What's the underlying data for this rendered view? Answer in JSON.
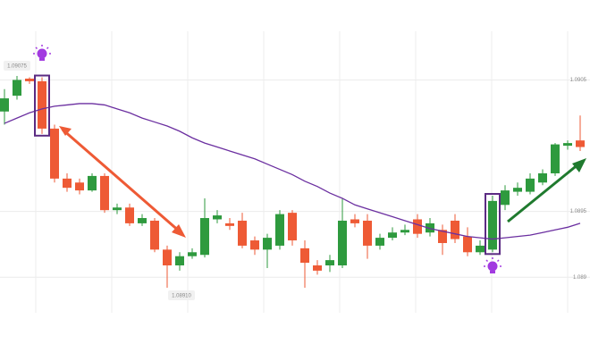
{
  "chart_data": {
    "type": "candlestick",
    "ylim": [
      1.08873,
      1.09087
    ],
    "yticks": [
      1.0905,
      1.0895,
      1.089
    ],
    "grid": true,
    "up_color": "#2e9a3e",
    "down_color": "#ee5a35",
    "highlight_color": "#5b2b83",
    "open": [
      1.09026,
      1.09038,
      1.09051,
      1.09049,
      1.09013,
      1.08975,
      1.08972,
      1.08966,
      1.08977,
      1.08951,
      1.08953,
      1.08941,
      1.08943,
      1.08921,
      1.08909,
      1.08916,
      1.08917,
      1.08944,
      1.08941,
      1.08943,
      1.08928,
      1.08921,
      1.08924,
      1.08949,
      1.08922,
      1.08909,
      1.08909,
      1.08909,
      1.08944,
      1.08943,
      1.08924,
      1.0893,
      1.08934,
      1.08944,
      1.08934,
      1.08936,
      1.08943,
      1.08931,
      1.08919,
      1.08921,
      1.08955,
      1.08965,
      1.08965,
      1.08972,
      1.08979,
      1.09,
      1.09004
    ],
    "high": [
      1.09043,
      1.09053,
      1.09052,
      1.09052,
      1.09016,
      1.08979,
      1.08975,
      1.08979,
      1.08979,
      1.08956,
      1.08956,
      1.08948,
      1.08945,
      1.08924,
      1.08919,
      1.08922,
      1.0896,
      1.08951,
      1.08945,
      1.08949,
      1.08931,
      1.08933,
      1.08951,
      1.08951,
      1.08928,
      1.08913,
      1.08917,
      1.0896,
      1.08948,
      1.08948,
      1.08933,
      1.08938,
      1.0894,
      1.08948,
      1.08945,
      1.0894,
      1.08948,
      1.08938,
      1.08928,
      1.08962,
      1.0897,
      1.08972,
      1.08979,
      1.08982,
      1.09002,
      1.09004,
      1.09023
    ],
    "low": [
      1.09016,
      1.09035,
      1.09047,
      1.09009,
      1.08972,
      1.08965,
      1.08963,
      1.08965,
      1.08949,
      1.08948,
      1.08939,
      1.08939,
      1.08919,
      1.08892,
      1.08905,
      1.08914,
      1.08915,
      1.08941,
      1.08936,
      1.08922,
      1.08917,
      1.08907,
      1.08921,
      1.08924,
      1.08892,
      1.08902,
      1.08904,
      1.08907,
      1.08938,
      1.08914,
      1.08921,
      1.08928,
      1.08932,
      1.0893,
      1.08931,
      1.08917,
      1.08926,
      1.08916,
      1.08917,
      1.08919,
      1.08951,
      1.08962,
      1.08963,
      1.0897,
      1.08977,
      1.08997,
      1.08996
    ],
    "close": [
      1.09036,
      1.0905,
      1.09049,
      1.09013,
      1.08975,
      1.08968,
      1.08966,
      1.08977,
      1.08951,
      1.08953,
      1.08941,
      1.08945,
      1.08921,
      1.08909,
      1.08916,
      1.08919,
      1.08945,
      1.08947,
      1.08939,
      1.08924,
      1.08921,
      1.0893,
      1.08948,
      1.08928,
      1.08911,
      1.08905,
      1.08913,
      1.08943,
      1.08941,
      1.08924,
      1.0893,
      1.08934,
      1.08936,
      1.08933,
      1.08941,
      1.08926,
      1.08929,
      1.08919,
      1.08924,
      1.08958,
      1.08966,
      1.08968,
      1.08975,
      1.08979,
      1.09001,
      1.09002,
      1.08999
    ],
    "ma": {
      "color": "#6b2fa0",
      "values": [
        1.09017,
        1.09021,
        1.09025,
        1.09028,
        1.0903,
        1.09031,
        1.09032,
        1.09032,
        1.09031,
        1.09028,
        1.09025,
        1.09021,
        1.09018,
        1.09015,
        1.09011,
        1.09006,
        1.09002,
        1.08999,
        1.08996,
        1.08993,
        1.0899,
        1.08986,
        1.08982,
        1.08978,
        1.08973,
        1.08969,
        1.08964,
        1.0896,
        1.08955,
        1.08952,
        1.08949,
        1.08946,
        1.08943,
        1.0894,
        1.08937,
        1.08935,
        1.08933,
        1.08931,
        1.0893,
        1.08929,
        1.0893,
        1.08931,
        1.08932,
        1.08934,
        1.08936,
        1.08938,
        1.08941
      ]
    },
    "annotations": [
      "1.09075",
      "1.08910"
    ]
  }
}
